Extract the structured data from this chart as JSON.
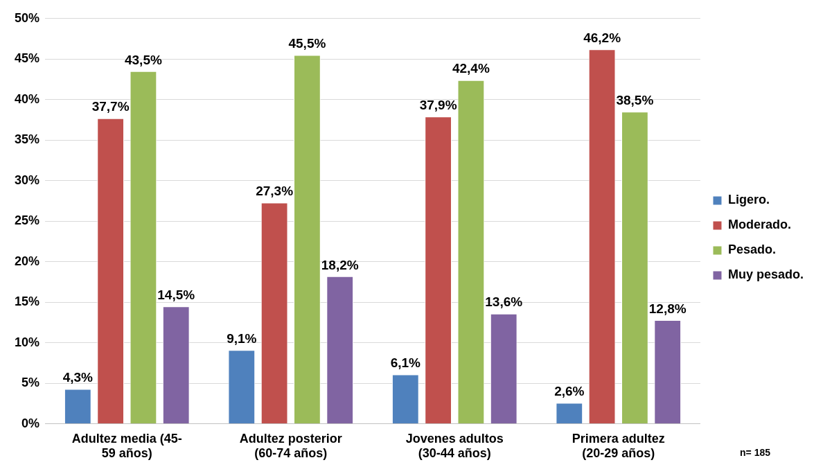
{
  "chart_data": {
    "type": "bar",
    "categories": [
      "Adultez media (45-59 años)",
      "Adultez posterior (60-74 años)",
      "Jovenes adultos (30-44 años)",
      "Primera adultez (20-29 años)"
    ],
    "series": [
      {
        "name": "Ligero.",
        "color": "#4f81bd",
        "values": [
          4.3,
          9.1,
          6.1,
          2.6
        ],
        "value_labels": [
          "4,3%",
          "9,1%",
          "6,1%",
          "2,6%"
        ]
      },
      {
        "name": "Moderado.",
        "color": "#c0504d",
        "values": [
          37.7,
          27.3,
          37.9,
          46.2
        ],
        "value_labels": [
          "37,7%",
          "27,3%",
          "37,9%",
          "46,2%"
        ]
      },
      {
        "name": "Pesado.",
        "color": "#9bbb59",
        "values": [
          43.5,
          45.5,
          42.4,
          38.5
        ],
        "value_labels": [
          "43,5%",
          "45,5%",
          "42,4%",
          "38,5%"
        ]
      },
      {
        "name": "Muy pesado.",
        "color": "#8064a2",
        "values": [
          14.5,
          18.2,
          13.6,
          12.8
        ],
        "value_labels": [
          "14,5%",
          "18,2%",
          "13,6%",
          "12,8%"
        ]
      }
    ],
    "ylim": [
      0,
      50
    ],
    "yticks": [
      {
        "value": 0,
        "label": "0%"
      },
      {
        "value": 5,
        "label": "5%"
      },
      {
        "value": 10,
        "label": "10%"
      },
      {
        "value": 15,
        "label": "15%"
      },
      {
        "value": 20,
        "label": "20%"
      },
      {
        "value": 25,
        "label": "25%"
      },
      {
        "value": 30,
        "label": "30%"
      },
      {
        "value": 35,
        "label": "35%"
      },
      {
        "value": 40,
        "label": "40%"
      },
      {
        "value": 45,
        "label": "45%"
      },
      {
        "value": 50,
        "label": "50%"
      }
    ],
    "grid": "y",
    "legend": "right",
    "annotations": [
      "n= 185"
    ]
  }
}
